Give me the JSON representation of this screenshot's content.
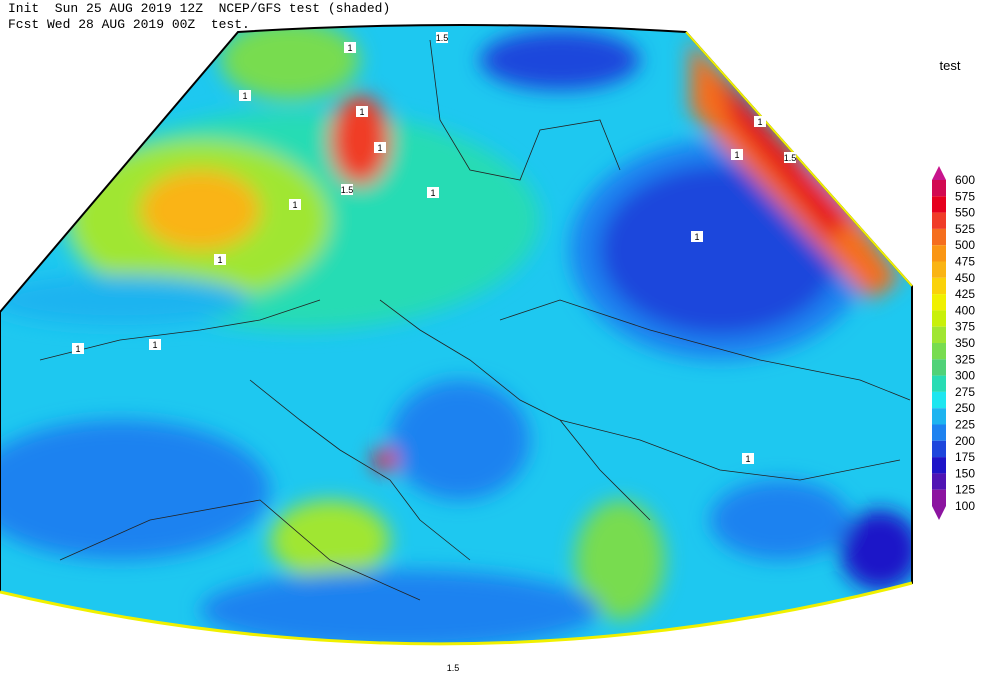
{
  "header": {
    "line1": "Init  Sun 25 AUG 2019 12Z  NCEP/GFS test (shaded)",
    "line2": "Fcst Wed 28 AUG 2019 00Z  test."
  },
  "legend": {
    "title": "test",
    "levels": [
      600,
      575,
      550,
      525,
      500,
      475,
      450,
      425,
      400,
      375,
      350,
      325,
      300,
      275,
      250,
      225,
      200,
      175,
      150,
      125,
      100
    ],
    "colors": [
      "#c8148c",
      "#d20a50",
      "#e6001e",
      "#f03c28",
      "#f56e1e",
      "#fa9614",
      "#fab414",
      "#fad20a",
      "#f0f000",
      "#c8f00a",
      "#a0e632",
      "#78dc50",
      "#50d278",
      "#28dcb4",
      "#1ee6f0",
      "#1eb4f0",
      "#1e82f0",
      "#1e46dc",
      "#1e14c8",
      "#5014b4",
      "#8c14a0",
      "#8c14a0"
    ]
  },
  "contour_labels": [
    "1.5",
    "1",
    "1",
    "1",
    "1",
    "1.5",
    "1",
    "1",
    "1",
    "1.5",
    "1",
    "1",
    "1",
    "1",
    "1",
    "1.5",
    "1"
  ]
}
